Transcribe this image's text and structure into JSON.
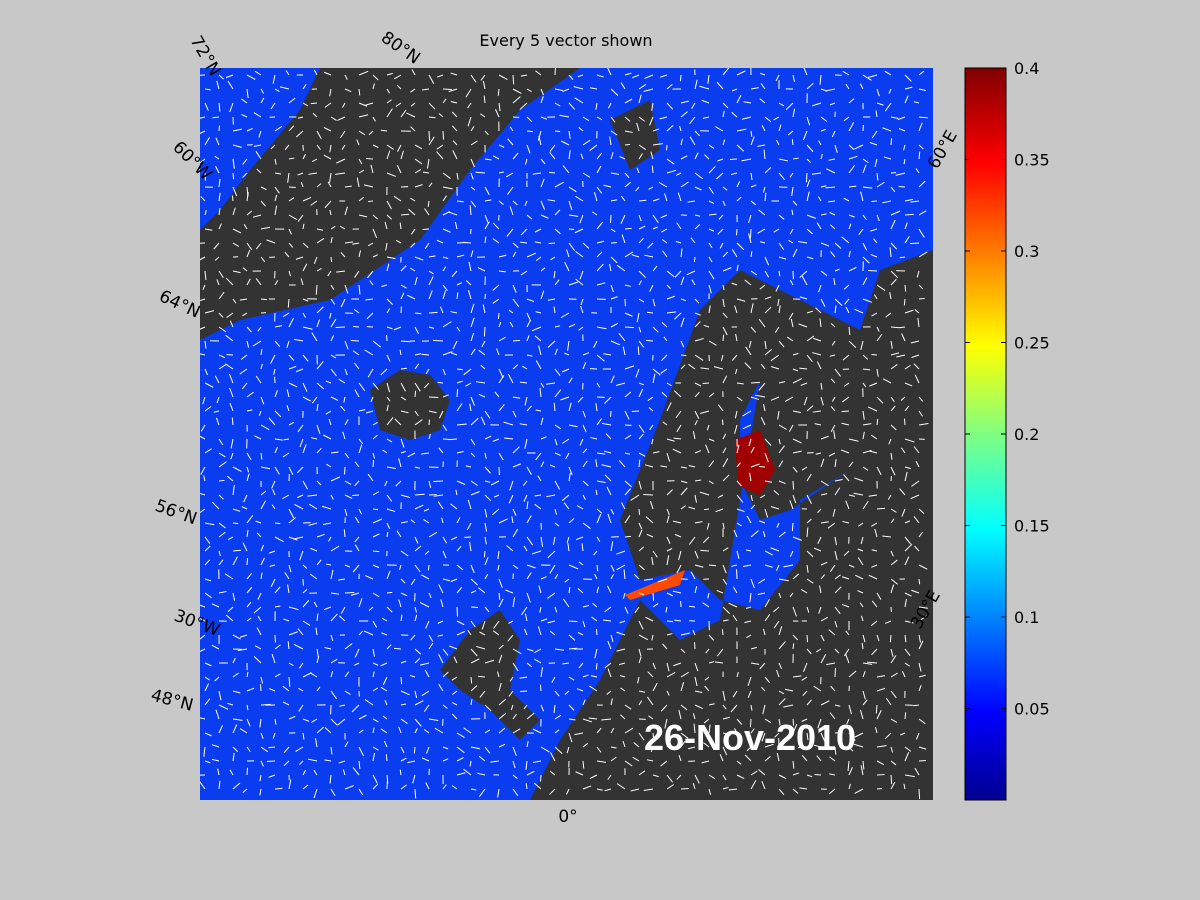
{
  "title": "Every 5 vector shown",
  "date_label": "26-Nov-2010",
  "graticule_labels": [
    "72°N",
    "80°N",
    "60°W",
    "64°N",
    "56°N",
    "30°W",
    "48°N",
    "0°",
    "30°E",
    "60°E"
  ],
  "colorbar": {
    "clim": [
      0,
      0.4
    ],
    "ticks": [
      0.05,
      0.1,
      0.15,
      0.2,
      0.25,
      0.3,
      0.35,
      0.4
    ]
  }
}
